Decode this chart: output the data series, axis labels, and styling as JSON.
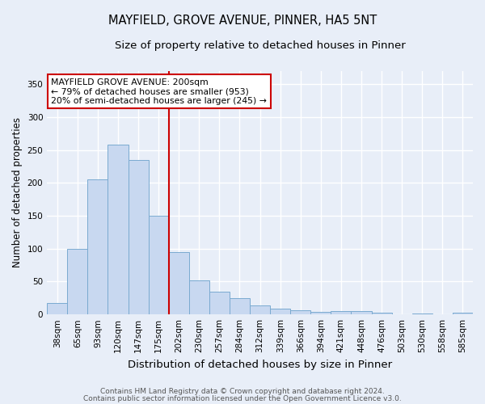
{
  "title": "MAYFIELD, GROVE AVENUE, PINNER, HA5 5NT",
  "subtitle": "Size of property relative to detached houses in Pinner",
  "xlabel": "Distribution of detached houses by size in Pinner",
  "ylabel": "Number of detached properties",
  "categories": [
    "38sqm",
    "65sqm",
    "93sqm",
    "120sqm",
    "147sqm",
    "175sqm",
    "202sqm",
    "230sqm",
    "257sqm",
    "284sqm",
    "312sqm",
    "339sqm",
    "366sqm",
    "394sqm",
    "421sqm",
    "448sqm",
    "476sqm",
    "503sqm",
    "530sqm",
    "558sqm",
    "585sqm"
  ],
  "values": [
    18,
    100,
    205,
    258,
    235,
    150,
    95,
    52,
    34,
    25,
    14,
    9,
    6,
    4,
    5,
    5,
    3,
    0,
    1,
    0,
    3
  ],
  "bar_color": "#c8d8f0",
  "bar_edge_color": "#7aaad0",
  "red_line_index": 6,
  "annotation_title": "MAYFIELD GROVE AVENUE: 200sqm",
  "annotation_line2": "← 79% of detached houses are smaller (953)",
  "annotation_line3": "20% of semi-detached houses are larger (245) →",
  "annotation_box_color": "#ffffff",
  "annotation_border_color": "#cc0000",
  "red_line_color": "#cc0000",
  "ylim": [
    0,
    370
  ],
  "yticks": [
    0,
    50,
    100,
    150,
    200,
    250,
    300,
    350
  ],
  "footer1": "Contains HM Land Registry data © Crown copyright and database right 2024.",
  "footer2": "Contains public sector information licensed under the Open Government Licence v3.0.",
  "background_color": "#e8eef8",
  "grid_color": "#ffffff",
  "title_fontsize": 10.5,
  "subtitle_fontsize": 9.5,
  "xlabel_fontsize": 9.5,
  "ylabel_fontsize": 8.5,
  "tick_fontsize": 7.5,
  "annotation_fontsize": 7.8,
  "footer_fontsize": 6.5
}
